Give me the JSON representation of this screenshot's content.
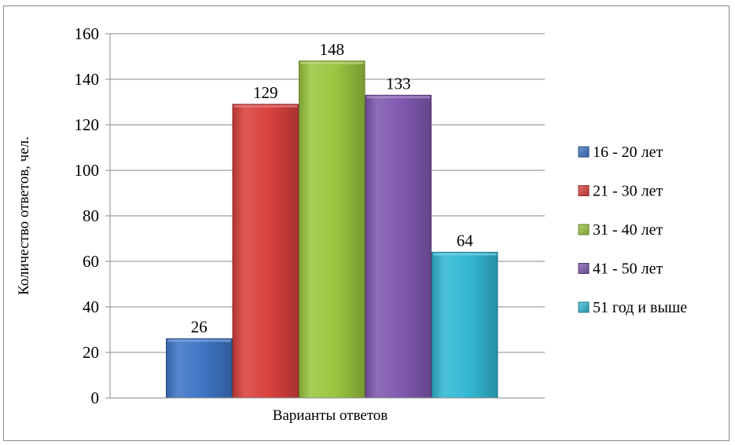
{
  "chart_data": {
    "type": "bar",
    "xlabel": "Варианты ответов",
    "ylabel": "Количество ответов, чел.",
    "ylim": [
      0,
      160
    ],
    "yticks": [
      0,
      20,
      40,
      60,
      80,
      100,
      120,
      140,
      160
    ],
    "grid": true,
    "legend_position": "right",
    "series": [
      {
        "name": "16 - 20 лет",
        "value": 26,
        "color": "#3f76c6"
      },
      {
        "name": "21 - 30 лет",
        "value": 129,
        "color": "#d9413d"
      },
      {
        "name": "31 - 40 лет",
        "value": 148,
        "color": "#9bc640"
      },
      {
        "name": "41 - 50 лет",
        "value": 133,
        "color": "#8059b0"
      },
      {
        "name": "51 год и выше",
        "value": 64,
        "color": "#33b8d4"
      }
    ]
  }
}
